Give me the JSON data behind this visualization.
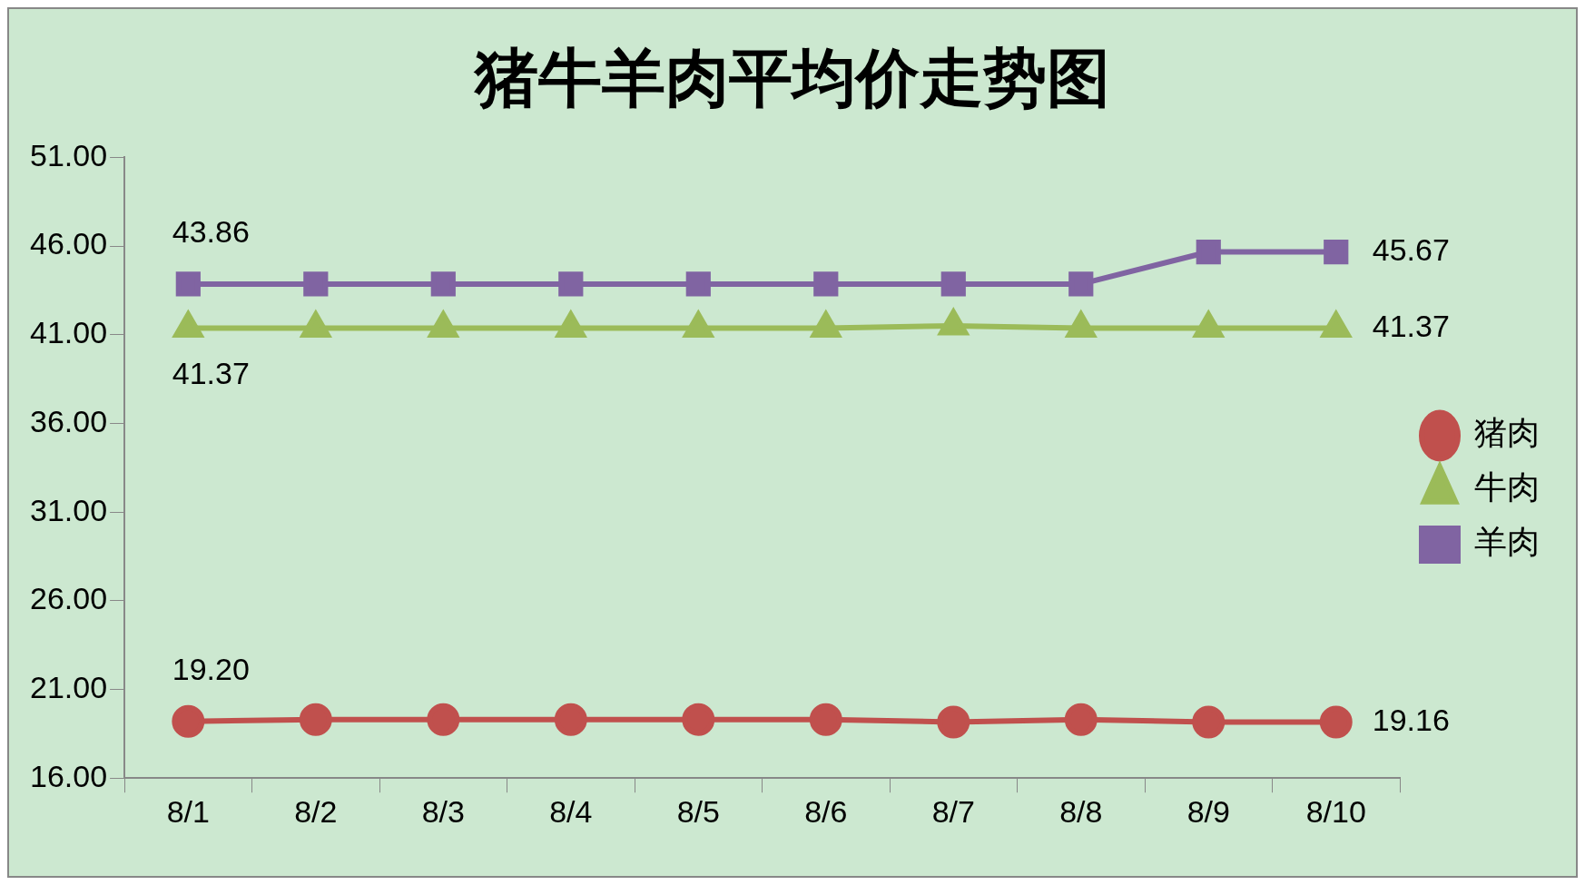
{
  "chart_data": {
    "type": "line",
    "title": "猪牛羊肉平均价走势图",
    "categories": [
      "8/1",
      "8/2",
      "8/3",
      "8/4",
      "8/5",
      "8/6",
      "8/7",
      "8/8",
      "8/9",
      "8/10"
    ],
    "series": [
      {
        "name": "猪肉",
        "color": "#c0504d",
        "marker": "circle",
        "values": [
          19.2,
          19.3,
          19.3,
          19.3,
          19.3,
          19.3,
          19.16,
          19.3,
          19.16,
          19.16
        ],
        "value_labels": [
          "19.20",
          null,
          null,
          null,
          null,
          null,
          null,
          null,
          null,
          "19.16"
        ]
      },
      {
        "name": "牛肉",
        "color": "#9bbb59",
        "marker": "triangle",
        "values": [
          41.37,
          41.37,
          41.37,
          41.37,
          41.37,
          41.37,
          41.5,
          41.37,
          41.37,
          41.37
        ],
        "value_labels": [
          "41.37",
          null,
          null,
          null,
          null,
          null,
          null,
          null,
          null,
          "41.37"
        ]
      },
      {
        "name": "羊肉",
        "color": "#8064a2",
        "marker": "square",
        "values": [
          43.86,
          43.86,
          43.86,
          43.86,
          43.86,
          43.86,
          43.86,
          43.86,
          45.67,
          45.67
        ],
        "value_labels": [
          "43.86",
          null,
          null,
          null,
          null,
          null,
          null,
          null,
          null,
          "45.67"
        ]
      }
    ],
    "ylim": [
      16,
      51
    ],
    "yticks": [
      {
        "value": 16,
        "label": "16.00"
      },
      {
        "value": 21,
        "label": "21.00"
      },
      {
        "value": 26,
        "label": "26.00"
      },
      {
        "value": 31,
        "label": "31.00"
      },
      {
        "value": 36,
        "label": "36.00"
      },
      {
        "value": 41,
        "label": "41.00"
      },
      {
        "value": 46,
        "label": "46.00"
      },
      {
        "value": 51,
        "label": "51.00"
      }
    ],
    "grid": false,
    "legend": "right",
    "line_style": "solid"
  }
}
